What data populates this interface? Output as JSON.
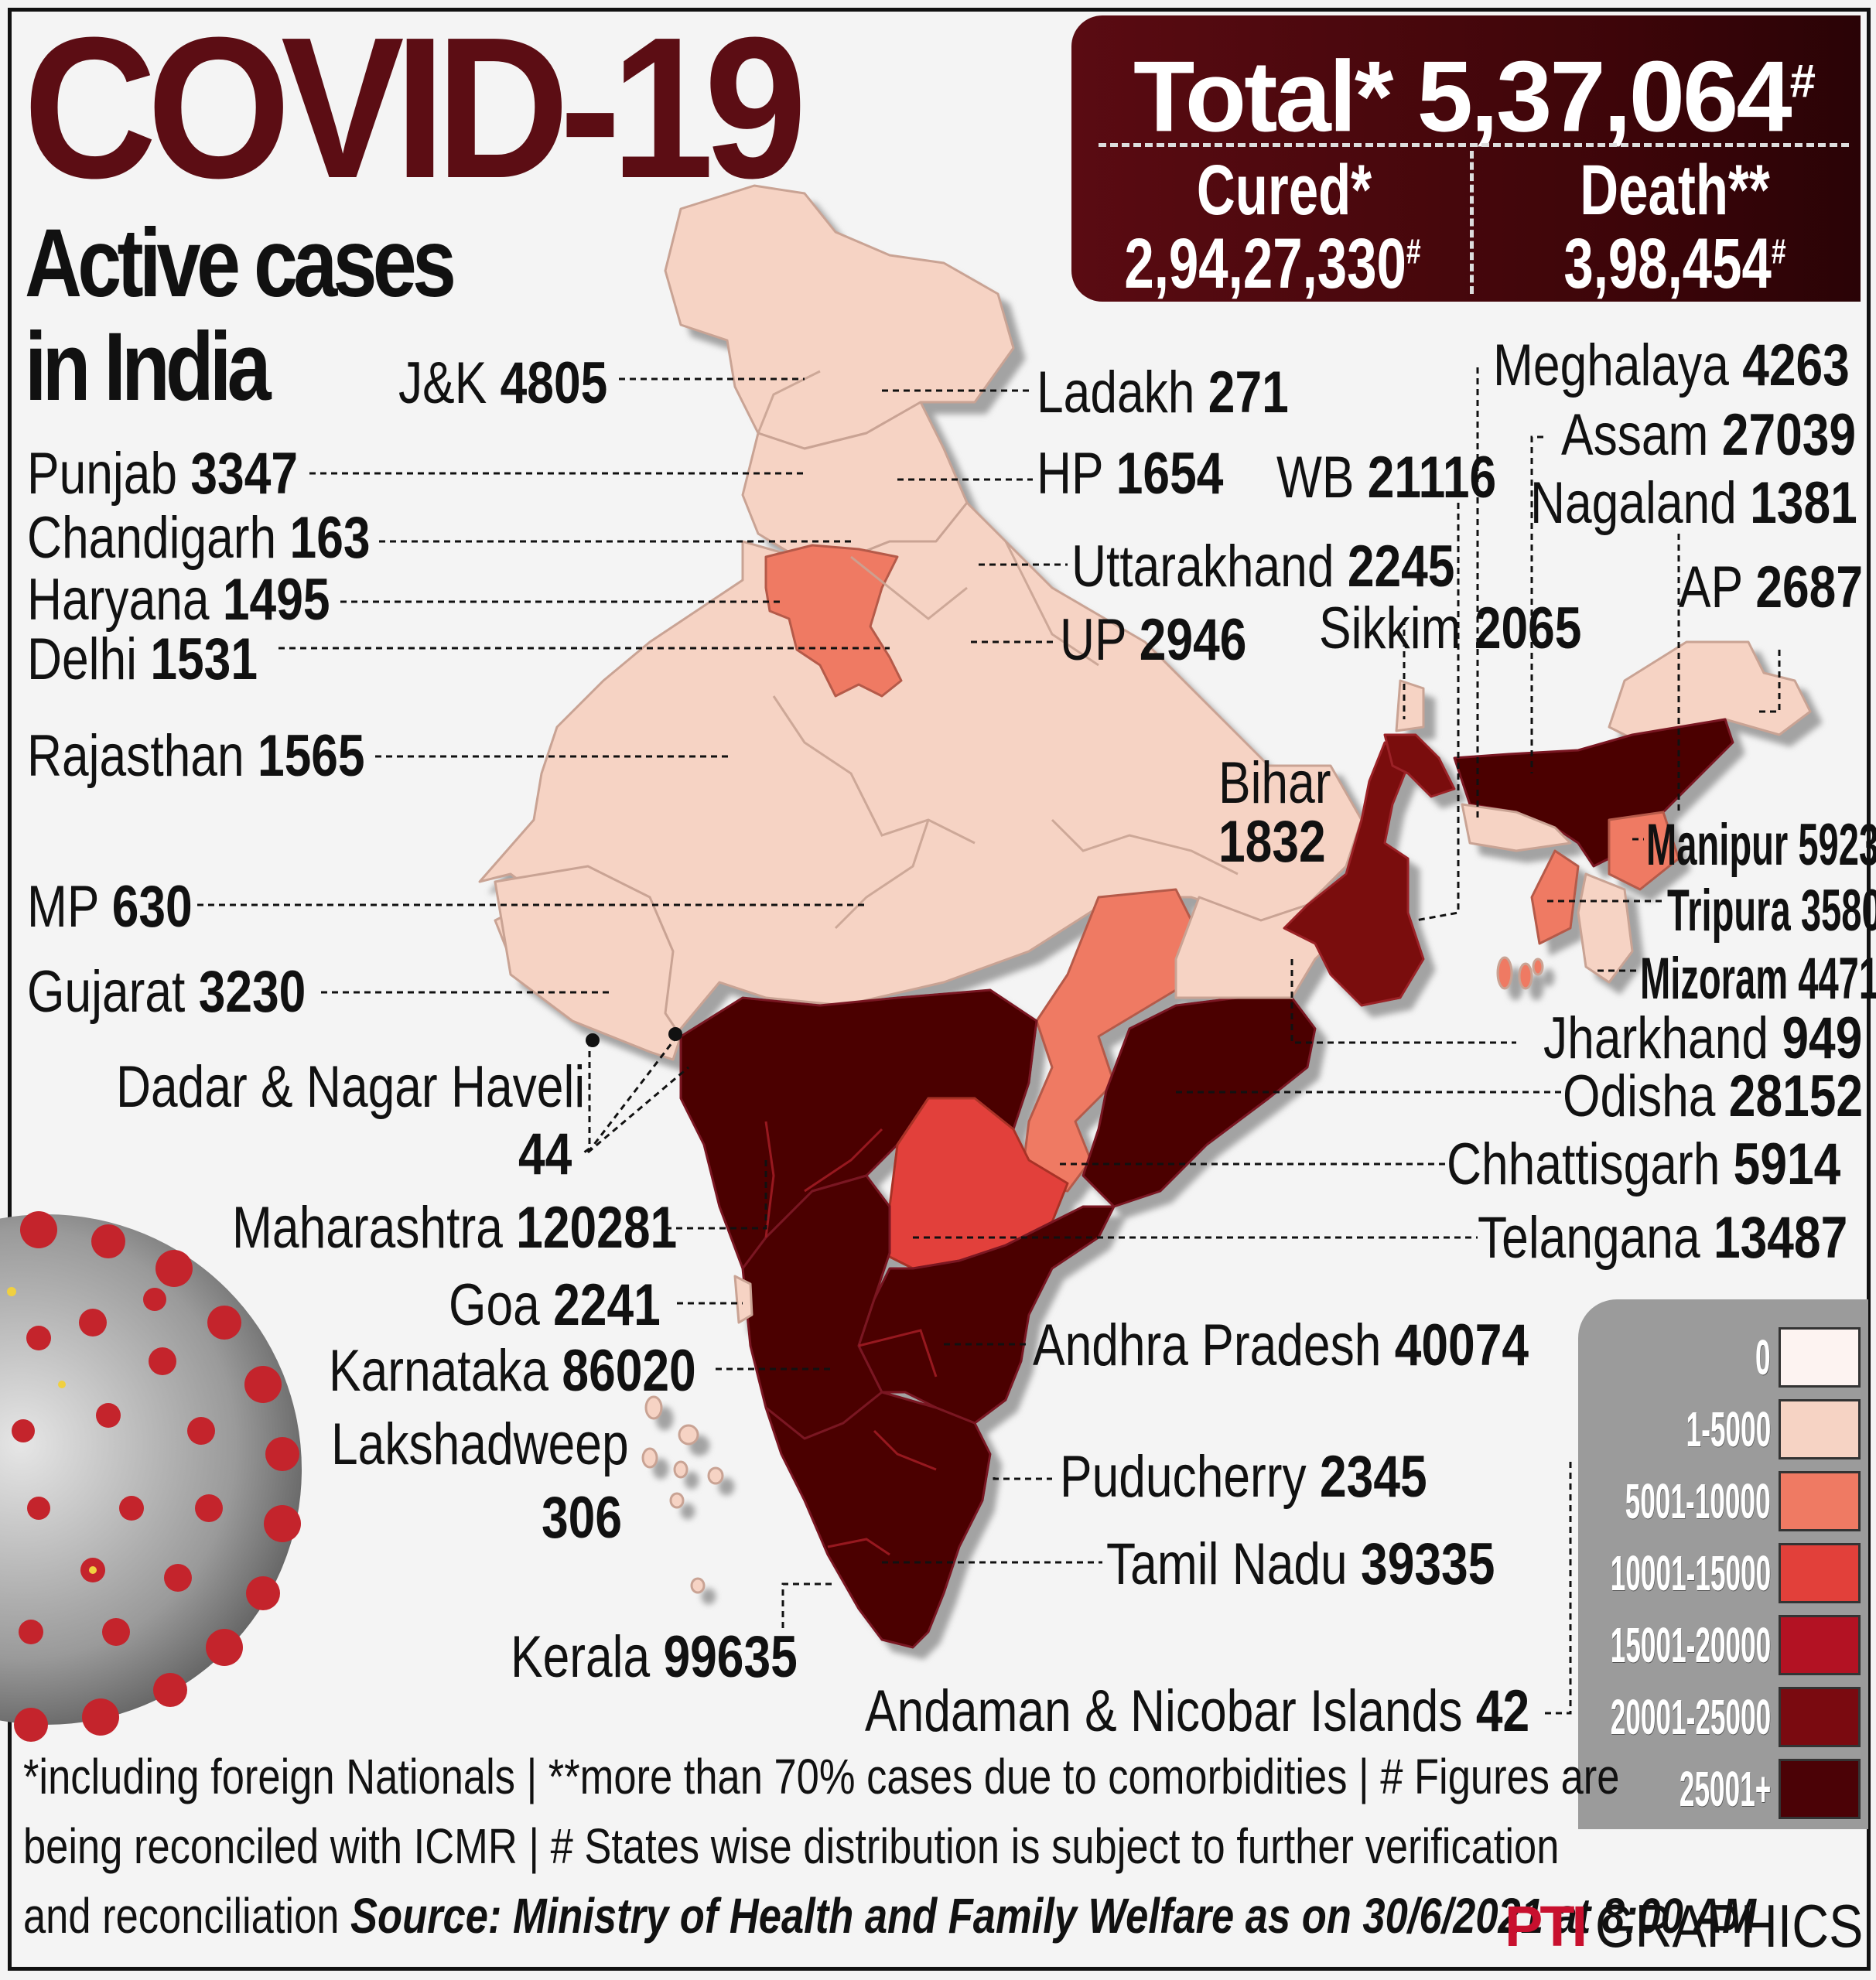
{
  "title": "COVID-19",
  "subtitle_1": "Active cases",
  "subtitle_2": "in India",
  "totals": {
    "total_label": "Total*",
    "total_value": "5,37,064",
    "total_mark": "#",
    "cured_label": "Cured*",
    "cured_value": "2,94,27,330",
    "cured_mark": "#",
    "death_label": "Death**",
    "death_value": "3,98,454",
    "death_mark": "#"
  },
  "colors": {
    "brand_dark": "#5c0d14",
    "bins": [
      "#fdf3f1",
      "#f6d3c4",
      "#ef7a63",
      "#e2403a",
      "#b31223",
      "#7a0a10",
      "#4b0206"
    ]
  },
  "legend": {
    "items": [
      {
        "label": "0",
        "color": "#fdf3f1"
      },
      {
        "label": "1-5000",
        "color": "#f6d3c4"
      },
      {
        "label": "5001-10000",
        "color": "#ef7a63"
      },
      {
        "label": "10001-15000",
        "color": "#e2403a"
      },
      {
        "label": "15001-20000",
        "color": "#b31223"
      },
      {
        "label": "20001-25000",
        "color": "#7a0a10"
      },
      {
        "label": "25001+",
        "color": "#4b0206"
      }
    ]
  },
  "states": {
    "jk": {
      "name": "J&K",
      "value": "4805"
    },
    "ladakh": {
      "name": "Ladakh",
      "value": "271"
    },
    "punjab": {
      "name": "Punjab",
      "value": "3347"
    },
    "hp": {
      "name": "HP",
      "value": "1654"
    },
    "wb": {
      "name": "WB",
      "value": "21116"
    },
    "chandigarh": {
      "name": "Chandigarh",
      "value": "163"
    },
    "uttarakhand": {
      "name": "Uttarakhand",
      "value": "2245"
    },
    "haryana": {
      "name": "Haryana",
      "value": "1495"
    },
    "delhi": {
      "name": "Delhi",
      "value": "1531"
    },
    "up": {
      "name": "UP",
      "value": "2946"
    },
    "sikkim": {
      "name": "Sikkim",
      "value": "2065"
    },
    "rajasthan": {
      "name": "Rajasthan",
      "value": "1565"
    },
    "bihar": {
      "name": "Bihar",
      "value": "1832"
    },
    "mp": {
      "name": "MP",
      "value": "630"
    },
    "gujarat": {
      "name": "Gujarat",
      "value": "3230"
    },
    "dnh": {
      "name": "Dadar & Nagar Haveli",
      "value": "44"
    },
    "maharashtra": {
      "name": "Maharashtra",
      "value": "120281"
    },
    "goa": {
      "name": "Goa",
      "value": "2241"
    },
    "karnataka": {
      "name": "Karnataka",
      "value": "86020"
    },
    "lakshadweep": {
      "name": "Lakshadweep",
      "value": "306"
    },
    "kerala": {
      "name": "Kerala",
      "value": "99635"
    },
    "meghalaya": {
      "name": "Meghalaya",
      "value": "4263"
    },
    "assam": {
      "name": "Assam",
      "value": "27039"
    },
    "nagaland": {
      "name": "Nagaland",
      "value": "1381"
    },
    "ap_arunachal": {
      "name": "AP",
      "value": "2687"
    },
    "manipur": {
      "name": "Manipur",
      "value": "5923"
    },
    "tripura": {
      "name": "Tripura",
      "value": "3580"
    },
    "mizoram": {
      "name": "Mizoram",
      "value": "4471"
    },
    "jharkhand": {
      "name": "Jharkhand",
      "value": "949"
    },
    "odisha": {
      "name": "Odisha",
      "value": "28152"
    },
    "chhattisgarh": {
      "name": "Chhattisgarh",
      "value": "5914"
    },
    "telangana": {
      "name": "Telangana",
      "value": "13487"
    },
    "andhra": {
      "name": "Andhra Pradesh",
      "value": "40074"
    },
    "puducherry": {
      "name": "Puducherry",
      "value": "2345"
    },
    "tamilnadu": {
      "name": "Tamil Nadu",
      "value": "39335"
    },
    "andaman": {
      "name": "Andaman & Nicobar Islands",
      "value": "42"
    }
  },
  "footer": {
    "line1": "*including foreign Nationals | **more than 70% cases due to comorbidities | # Figures are",
    "line2": "being reconciled with ICMR  | # States wise distribution is subject to further verification",
    "line3": "and reconciliation",
    "source": "Source: Ministry of Health and Family Welfare as on 30/6/2021 at 8:00 AM"
  },
  "credit": {
    "logo": "PTI",
    "text": "GRAPHICS"
  }
}
